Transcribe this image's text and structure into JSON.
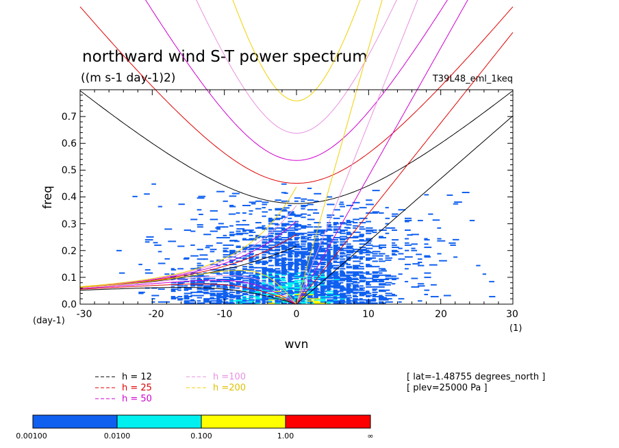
{
  "chart_data": {
    "type": "heatmap",
    "title": "northward wind S-T power spectrum",
    "subtitle": "((m s-1 day-1)2)",
    "run_label": "T39L48_eml_1keq",
    "xlabel": "wvn",
    "ylabel": "freq",
    "x_unit": "(1)",
    "y_unit": "(day-1)",
    "xlim": [
      -30,
      30
    ],
    "ylim": [
      0,
      0.8
    ],
    "x_ticks": [
      -30,
      -20,
      -10,
      0,
      10,
      20,
      30
    ],
    "x_tick_labels": [
      "-30",
      "-20",
      "-10",
      "0",
      "10",
      "20",
      "30"
    ],
    "y_ticks": [
      0,
      0.1,
      0.2,
      0.3,
      0.4,
      0.5,
      0.6,
      0.7
    ],
    "y_tick_labels": [
      "0.0",
      "0.1",
      "0.2",
      "0.3",
      "0.4",
      "0.5",
      "0.6",
      "0.7"
    ],
    "dispersion_curves": [
      {
        "h": 12,
        "label": "h = 12",
        "color": "#000000"
      },
      {
        "h": 25,
        "label": "h = 25",
        "color": "#e00000"
      },
      {
        "h": 50,
        "label": "h = 50",
        "color": "#d000d0"
      },
      {
        "h": 100,
        "label": "h =100",
        "color": "#e890e0"
      },
      {
        "h": 200,
        "label": "h =200",
        "color": "#f0d000"
      }
    ],
    "info_lines": [
      "[ lat=-1.48755 degrees_north ]",
      "[ plev=25000 Pa ]"
    ],
    "colorbar": {
      "levels": [
        "0.00100",
        "0.0100",
        "0.100",
        "1.00",
        "∞"
      ],
      "colors": [
        "#1060f0",
        "#00f0f0",
        "#ffff00",
        "#ff0000"
      ]
    }
  }
}
